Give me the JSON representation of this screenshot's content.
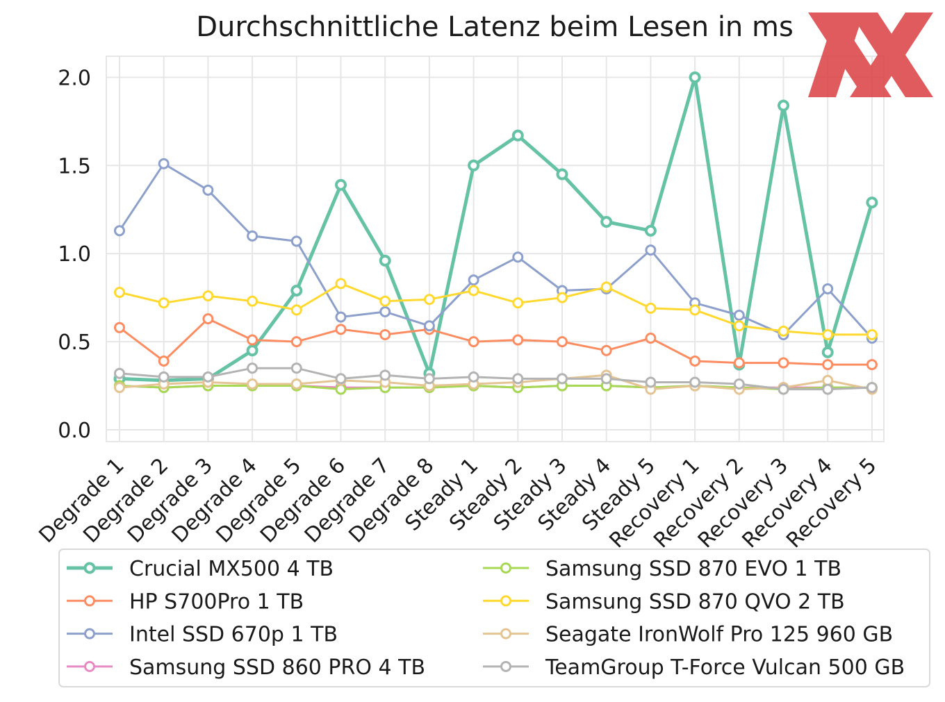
{
  "chart_data": {
    "type": "line",
    "title": "Durchschnittliche Latenz beim Lesen in ms",
    "xlabel": "",
    "ylabel": "",
    "categories": [
      "Degrade 1",
      "Degrade 2",
      "Degrade 3",
      "Degrade 4",
      "Degrade 5",
      "Degrade 6",
      "Degrade 7",
      "Degrade 8",
      "Steady 1",
      "Steady 2",
      "Steady 3",
      "Steady 4",
      "Steady 5",
      "Recovery 1",
      "Recovery 2",
      "Recovery 3",
      "Recovery 4",
      "Recovery 5"
    ],
    "ylim": [
      -0.07,
      2.12
    ],
    "yticks": [
      0.0,
      0.5,
      1.0,
      1.5,
      2.0
    ],
    "ytick_labels": [
      "0.0",
      "0.5",
      "1.0",
      "1.5",
      "2.0"
    ],
    "grid": true,
    "legend_position": "bottom",
    "series": [
      {
        "name": "Crucial MX500 4 TB",
        "color": "#66c2a5",
        "emphasized": true,
        "values": [
          0.29,
          0.28,
          0.29,
          0.45,
          0.79,
          1.39,
          0.96,
          0.32,
          1.5,
          1.67,
          1.45,
          1.18,
          1.13,
          2.0,
          0.37,
          1.84,
          0.44,
          1.29
        ]
      },
      {
        "name": "HP S700Pro 1 TB",
        "color": "#fc8d62",
        "values": [
          0.58,
          0.39,
          0.63,
          0.51,
          0.5,
          0.57,
          0.54,
          0.57,
          0.5,
          0.51,
          0.5,
          0.45,
          0.52,
          0.39,
          0.38,
          0.38,
          0.37,
          0.37
        ]
      },
      {
        "name": "Intel SSD 670p 1 TB",
        "color": "#8da0cb",
        "values": [
          1.13,
          1.51,
          1.36,
          1.1,
          1.07,
          0.64,
          0.67,
          0.59,
          0.85,
          0.98,
          0.79,
          0.8,
          1.02,
          0.72,
          0.65,
          0.54,
          0.8,
          0.52
        ]
      },
      {
        "name": "Samsung SSD 860 PRO 4 TB",
        "color": "#e78ac3",
        "values": [
          0.25,
          0.24,
          0.25,
          0.25,
          0.25,
          0.24,
          0.24,
          0.24,
          0.25,
          0.24,
          0.25,
          0.25,
          0.24,
          0.25,
          0.24,
          0.24,
          0.24,
          0.24
        ]
      },
      {
        "name": "Samsung SSD 870 EVO 1 TB",
        "color": "#a6d854",
        "values": [
          0.25,
          0.24,
          0.25,
          0.25,
          0.25,
          0.23,
          0.24,
          0.24,
          0.25,
          0.24,
          0.25,
          0.25,
          0.24,
          0.25,
          0.24,
          0.23,
          0.24,
          0.24
        ]
      },
      {
        "name": "Samsung SSD 870 QVO 2 TB",
        "color": "#ffd92f",
        "values": [
          0.78,
          0.72,
          0.76,
          0.73,
          0.68,
          0.83,
          0.73,
          0.74,
          0.79,
          0.72,
          0.75,
          0.81,
          0.69,
          0.68,
          0.59,
          0.56,
          0.54,
          0.54
        ]
      },
      {
        "name": "Seagate IronWolf Pro 125 960 GB",
        "color": "#e5c494",
        "values": [
          0.24,
          0.26,
          0.27,
          0.26,
          0.26,
          0.28,
          0.27,
          0.25,
          0.26,
          0.27,
          0.29,
          0.31,
          0.23,
          0.25,
          0.23,
          0.24,
          0.28,
          0.23
        ]
      },
      {
        "name": "TeamGroup T-Force Vulcan 500 GB",
        "color": "#b3b3b3",
        "values": [
          0.32,
          0.3,
          0.3,
          0.35,
          0.35,
          0.29,
          0.31,
          0.29,
          0.3,
          0.29,
          0.29,
          0.29,
          0.27,
          0.27,
          0.26,
          0.23,
          0.23,
          0.24
        ]
      }
    ]
  },
  "logo": {
    "name": "watermark-logo",
    "color": "#d9383a"
  }
}
